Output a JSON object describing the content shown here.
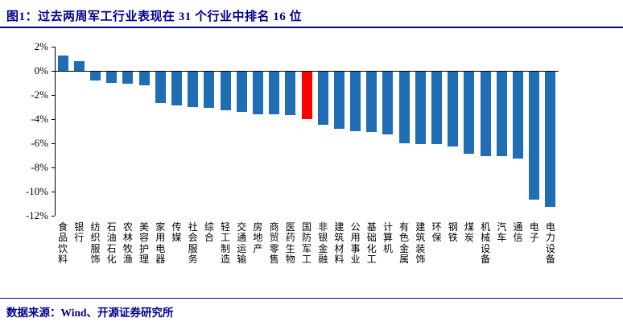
{
  "title": "图1：过去两周军工行业表现在 31 个行业中排名 16 位",
  "footer": {
    "source": "数据来源：Wind、开源证券研究所"
  },
  "colors": {
    "bar": "#1F6EB4",
    "highlight": "#FF0000",
    "accent": "#00008B",
    "axis": "#000000"
  },
  "chart_data": {
    "type": "bar",
    "title": "过去两周军工行业表现在31个行业中排名16位",
    "categories": [
      "食品饮料",
      "银行",
      "纺织服饰",
      "石油石化",
      "农林牧渔",
      "美容护理",
      "家用电器",
      "传媒",
      "社会服务",
      "综合",
      "轻工制造",
      "交通运输",
      "房地产",
      "商贸零售",
      "医药生物",
      "国防军工",
      "非银金融",
      "建筑材料",
      "公用事业",
      "基础化工",
      "计算机",
      "有色金属",
      "建筑装饰",
      "环保",
      "钢铁",
      "煤炭",
      "机械设备",
      "汽车",
      "通信",
      "电子",
      "电力设备"
    ],
    "values": [
      1.3,
      0.8,
      -0.7,
      -0.9,
      -1.0,
      -1.1,
      -2.6,
      -2.8,
      -2.9,
      -3.0,
      -3.2,
      -3.3,
      -3.5,
      -3.5,
      -3.6,
      -3.9,
      -4.4,
      -4.7,
      -4.9,
      -5.0,
      -5.2,
      -5.9,
      -6.0,
      -6.0,
      -6.2,
      -6.8,
      -7.0,
      -7.0,
      -7.2,
      -10.6,
      -11.2
    ],
    "unit": "%",
    "highlight_index": 15,
    "highlight_category": "国防军工",
    "ylim": [
      -12,
      2
    ],
    "y_ticks": [
      2,
      0,
      -2,
      -4,
      -6,
      -8,
      -10,
      -12
    ],
    "grid": false,
    "legend": false,
    "xlabel": "",
    "ylabel": ""
  }
}
